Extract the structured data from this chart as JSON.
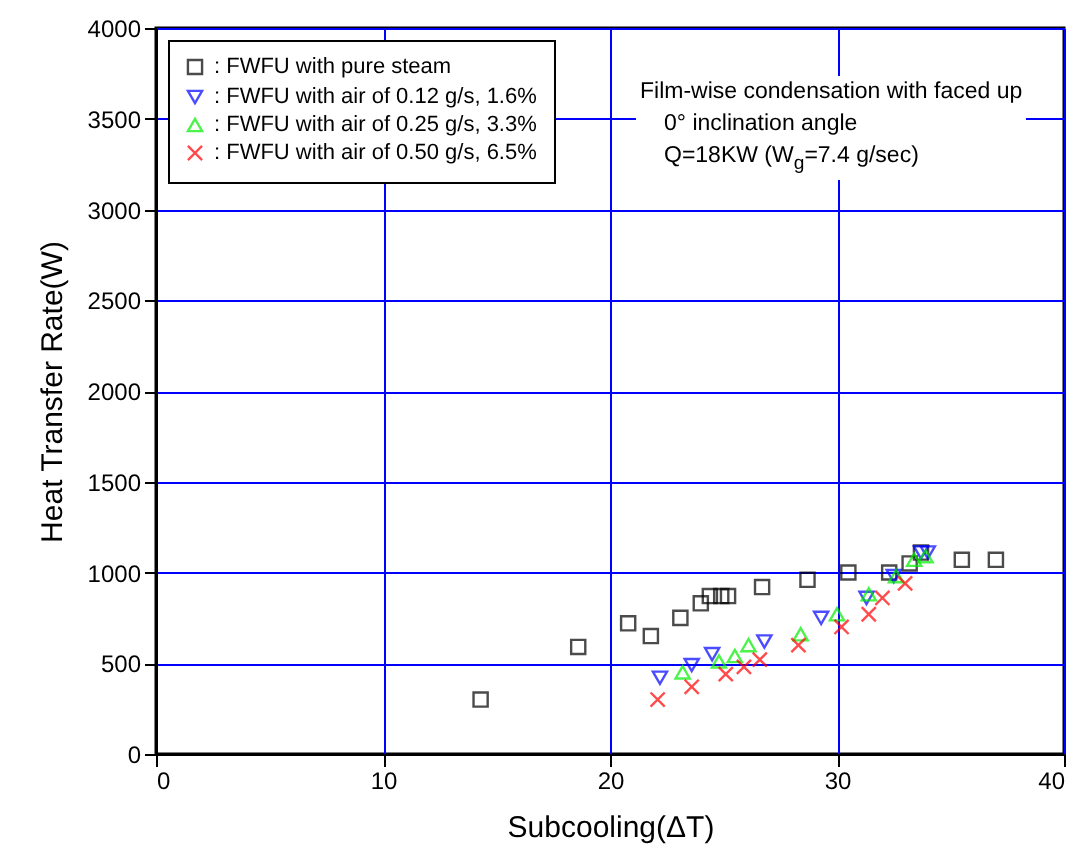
{
  "chart_data": {
    "type": "scatter",
    "xlabel": "Subcooling(ΔT)",
    "ylabel": "Heat Transfer Rate(W)",
    "xlim": [
      0,
      40
    ],
    "xticks": [
      0,
      10,
      20,
      30,
      40
    ],
    "ylim": [
      0,
      4000
    ],
    "yticks": [
      0,
      500,
      1000,
      1500,
      2000,
      2500,
      3000,
      3500,
      4000
    ],
    "grid": true,
    "legend": "top left",
    "annotations": [
      "Film-wise condensation with faced up",
      "0° inclination angle",
      "Q=18KW (W$_{g}$=7.4 g/sec)"
    ],
    "series": [
      {
        "name": ": FWFU with pure steam",
        "color": "#000000",
        "marker": "square",
        "x": [
          14.3,
          18.6,
          20.8,
          21.8,
          23.1,
          24.0,
          24.4,
          24.9,
          25.2,
          26.7,
          28.7,
          30.5,
          32.3,
          33.2,
          33.7,
          35.5,
          37.0
        ],
        "values": [
          300,
          590,
          720,
          650,
          750,
          830,
          870,
          870,
          870,
          920,
          960,
          1000,
          1000,
          1050,
          1110,
          1070,
          1070
        ]
      },
      {
        "name": ": FWFU with air of 0.12 g/s, 1.6%",
        "color": "#0000ff",
        "marker": "triangle-down",
        "x": [
          22.2,
          23.6,
          24.5,
          26.8,
          29.3,
          31.3,
          32.5,
          33.7,
          34.0
        ],
        "values": [
          420,
          490,
          550,
          620,
          750,
          860,
          980,
          1110,
          1110
        ]
      },
      {
        "name": ": FWFU with air of 0.25 g/s, 3.3%",
        "color": "#00ee00",
        "marker": "triangle",
        "x": [
          23.2,
          24.8,
          25.5,
          26.1,
          28.4,
          30.0,
          31.4,
          32.6,
          33.4,
          33.9
        ],
        "values": [
          450,
          510,
          540,
          600,
          660,
          770,
          880,
          980,
          1070,
          1090
        ]
      },
      {
        "name": ": FWFU with air of 0.50 g/s, 6.5%",
        "color": "#ff0000",
        "marker": "cross",
        "x": [
          22.1,
          23.6,
          25.1,
          25.9,
          26.6,
          28.3,
          30.2,
          31.4,
          32.0,
          33.0
        ],
        "values": [
          300,
          370,
          440,
          480,
          520,
          600,
          700,
          770,
          860,
          940
        ]
      }
    ]
  }
}
